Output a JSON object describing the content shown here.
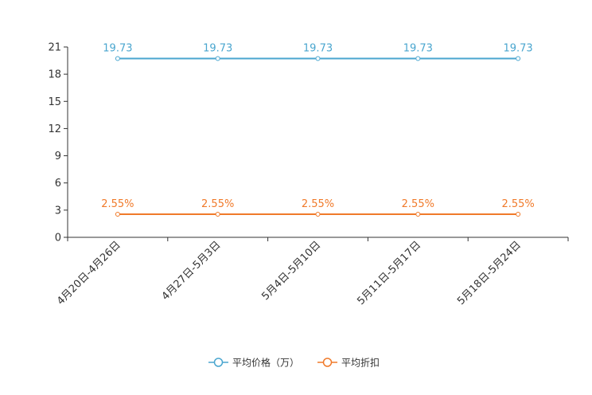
{
  "chart_data": {
    "type": "line",
    "title": "",
    "xlabel": "",
    "ylabel": "",
    "categories": [
      "4月20日-4月26日",
      "4月27日-5月3日",
      "5月4日-5月10日",
      "5月11日-5月17日",
      "5月18日-5月24日"
    ],
    "ylim": [
      0,
      21
    ],
    "yticks": [
      0,
      3,
      6,
      9,
      12,
      15,
      18,
      21
    ],
    "series": [
      {
        "name": "平均价格（万）",
        "values": [
          19.73,
          19.73,
          19.73,
          19.73,
          19.73
        ],
        "labels": [
          "19.73",
          "19.73",
          "19.73",
          "19.73",
          "19.73"
        ],
        "color": "#4aa6cf"
      },
      {
        "name": "平均折扣",
        "values": [
          2.55,
          2.55,
          2.55,
          2.55,
          2.55
        ],
        "labels": [
          "2.55%",
          "2.55%",
          "2.55%",
          "2.55%",
          "2.55%"
        ],
        "color": "#f07a2a"
      }
    ],
    "legend_position": "bottom-center"
  }
}
